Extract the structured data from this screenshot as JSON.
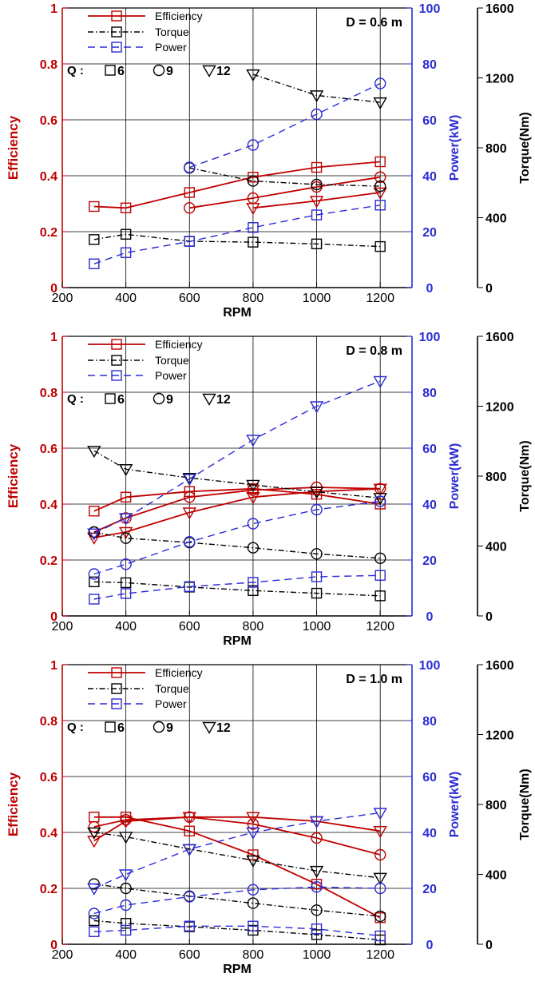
{
  "colors": {
    "efficiency": "#c00000",
    "torque": "#000000",
    "power": "#2b2bd6"
  },
  "legend": {
    "efficiency": "Efficiency",
    "torque": "Torque",
    "power": "Power",
    "q_label": "Q :",
    "q_values": [
      "6",
      "9",
      "12"
    ],
    "q_markers": [
      "square",
      "circle",
      "triangle-down"
    ]
  },
  "chart_data": [
    {
      "type": "line",
      "title": "D = 0.6 m",
      "xlabel": "RPM",
      "ylabel_left": "Efficiency",
      "ylabel_right_inner": "Power(kW)",
      "ylabel_right_outer": "Torque(Nm)",
      "xlim": [
        200,
        1300
      ],
      "ylim_left": [
        0,
        1
      ],
      "ylim_power": [
        0,
        100
      ],
      "ylim_torque": [
        0,
        1600
      ],
      "xticks": [
        "200",
        "400",
        "600",
        "800",
        "1000",
        "1200"
      ],
      "yticks_left": [
        "0",
        "0.2",
        "0.4",
        "0.6",
        "0.8",
        "1"
      ],
      "yticks_power": [
        "0",
        "20",
        "40",
        "60",
        "80",
        "100"
      ],
      "yticks_torque": [
        "0",
        "400",
        "800",
        "1200",
        "1600"
      ],
      "grid": true,
      "series": [
        {
          "quantity": "efficiency",
          "q": "6",
          "marker": "square",
          "x": [
            300,
            400,
            600,
            800,
            1000,
            1200
          ],
          "y": [
            0.29,
            0.285,
            0.34,
            0.395,
            0.43,
            0.45
          ]
        },
        {
          "quantity": "efficiency",
          "q": "9",
          "marker": "circle",
          "x": [
            600,
            800,
            1000,
            1200
          ],
          "y": [
            0.285,
            0.32,
            0.36,
            0.395
          ]
        },
        {
          "quantity": "efficiency",
          "q": "12",
          "marker": "triangle-down",
          "x": [
            800,
            1000,
            1200
          ],
          "y": [
            0.285,
            0.31,
            0.34
          ]
        },
        {
          "quantity": "torque",
          "q": "6",
          "marker": "square",
          "x": [
            300,
            400,
            600,
            800,
            1000,
            1200
          ],
          "y": [
            275,
            305,
            265,
            260,
            250,
            235
          ]
        },
        {
          "quantity": "torque",
          "q": "9",
          "marker": "circle",
          "x": [
            600,
            800,
            1000,
            1200
          ],
          "y": [
            685,
            610,
            590,
            580
          ]
        },
        {
          "quantity": "torque",
          "q": "12",
          "marker": "triangle-down",
          "x": [
            800,
            1000,
            1200
          ],
          "y": [
            1220,
            1100,
            1060
          ]
        },
        {
          "quantity": "power",
          "q": "6",
          "marker": "square",
          "x": [
            300,
            400,
            600,
            800,
            1000,
            1200
          ],
          "y": [
            8.5,
            12.5,
            16.5,
            21.5,
            26,
            29.5
          ]
        },
        {
          "quantity": "power",
          "q": "9",
          "marker": "circle",
          "x": [
            600,
            800,
            1000,
            1200
          ],
          "y": [
            43,
            51,
            62,
            73
          ]
        },
        {
          "quantity": "power",
          "q": "12",
          "marker": "triangle-down",
          "x": [],
          "y": []
        }
      ]
    },
    {
      "type": "line",
      "title": "D = 0.8 m",
      "xlabel": "RPM",
      "ylabel_left": "Efficiency",
      "ylabel_right_inner": "Power(kW)",
      "ylabel_right_outer": "Torque(Nm)",
      "xlim": [
        200,
        1300
      ],
      "ylim_left": [
        0,
        1
      ],
      "ylim_power": [
        0,
        100
      ],
      "ylim_torque": [
        0,
        1600
      ],
      "xticks": [
        "200",
        "400",
        "600",
        "800",
        "1000",
        "1200"
      ],
      "yticks_left": [
        "0",
        "0.2",
        "0.4",
        "0.6",
        "0.8",
        "1"
      ],
      "yticks_power": [
        "0",
        "20",
        "40",
        "60",
        "80",
        "100"
      ],
      "yticks_torque": [
        "0",
        "400",
        "800",
        "1200",
        "1600"
      ],
      "grid": true,
      "series": [
        {
          "quantity": "efficiency",
          "q": "6",
          "marker": "square",
          "x": [
            300,
            400,
            600,
            800,
            1000,
            1200
          ],
          "y": [
            0.375,
            0.425,
            0.445,
            0.455,
            0.435,
            0.4
          ]
        },
        {
          "quantity": "efficiency",
          "q": "9",
          "marker": "circle",
          "x": [
            300,
            400,
            600,
            800,
            1000,
            1200
          ],
          "y": [
            0.3,
            0.35,
            0.425,
            0.45,
            0.46,
            0.455
          ]
        },
        {
          "quantity": "efficiency",
          "q": "12",
          "marker": "triangle-down",
          "x": [
            300,
            400,
            600,
            800,
            1000,
            1200
          ],
          "y": [
            0.28,
            0.3,
            0.37,
            0.425,
            0.445,
            0.455
          ]
        },
        {
          "quantity": "torque",
          "q": "6",
          "marker": "square",
          "x": [
            300,
            400,
            600,
            800,
            1000,
            1200
          ],
          "y": [
            195,
            190,
            165,
            145,
            130,
            115
          ]
        },
        {
          "quantity": "torque",
          "q": "9",
          "marker": "circle",
          "x": [
            300,
            400,
            600,
            800,
            1000,
            1200
          ],
          "y": [
            480,
            445,
            420,
            390,
            355,
            330
          ]
        },
        {
          "quantity": "torque",
          "q": "12",
          "marker": "triangle-down",
          "x": [
            300,
            400,
            600,
            800,
            1000,
            1200
          ],
          "y": [
            945,
            840,
            790,
            750,
            710,
            675
          ]
        },
        {
          "quantity": "power",
          "q": "6",
          "marker": "square",
          "x": [
            300,
            400,
            600,
            800,
            1000,
            1200
          ],
          "y": [
            6,
            8,
            10.5,
            12,
            14,
            14.5
          ]
        },
        {
          "quantity": "power",
          "q": "9",
          "marker": "circle",
          "x": [
            300,
            400,
            600,
            800,
            1000,
            1200
          ],
          "y": [
            15,
            18.5,
            26.5,
            33,
            38,
            41
          ]
        },
        {
          "quantity": "power",
          "q": "12",
          "marker": "triangle-down",
          "x": [
            300,
            400,
            600,
            800,
            1000,
            1200
          ],
          "y": [
            29.5,
            35,
            49,
            63,
            75,
            84
          ]
        }
      ]
    },
    {
      "type": "line",
      "title": "D = 1.0 m",
      "xlabel": "RPM",
      "ylabel_left": "Efficiency",
      "ylabel_right_inner": "Power(kW)",
      "ylabel_right_outer": "Torque(Nm)",
      "xlim": [
        200,
        1300
      ],
      "ylim_left": [
        0,
        1
      ],
      "ylim_power": [
        0,
        100
      ],
      "ylim_torque": [
        0,
        1600
      ],
      "xticks": [
        "200",
        "400",
        "600",
        "800",
        "1000",
        "1200"
      ],
      "yticks_left": [
        "0",
        "0.2",
        "0.4",
        "0.6",
        "0.8",
        "1"
      ],
      "yticks_power": [
        "0",
        "20",
        "40",
        "60",
        "80",
        "100"
      ],
      "yticks_torque": [
        "0",
        "400",
        "800",
        "1200",
        "1600"
      ],
      "grid": true,
      "series": [
        {
          "quantity": "efficiency",
          "q": "6",
          "marker": "square",
          "x": [
            300,
            400,
            600,
            800,
            1000,
            1200
          ],
          "y": [
            0.455,
            0.455,
            0.405,
            0.32,
            0.215,
            0.095
          ]
        },
        {
          "quantity": "efficiency",
          "q": "9",
          "marker": "circle",
          "x": [
            300,
            400,
            600,
            800,
            1000,
            1200
          ],
          "y": [
            0.42,
            0.445,
            0.455,
            0.43,
            0.38,
            0.32
          ]
        },
        {
          "quantity": "efficiency",
          "q": "12",
          "marker": "triangle-down",
          "x": [
            300,
            400,
            600,
            800,
            1000,
            1200
          ],
          "y": [
            0.37,
            0.44,
            0.455,
            0.455,
            0.44,
            0.405
          ]
        },
        {
          "quantity": "torque",
          "q": "6",
          "marker": "square",
          "x": [
            300,
            400,
            600,
            800,
            1000,
            1200
          ],
          "y": [
            135,
            120,
            100,
            80,
            55,
            25
          ]
        },
        {
          "quantity": "torque",
          "q": "9",
          "marker": "circle",
          "x": [
            300,
            400,
            600,
            800,
            1000,
            1200
          ],
          "y": [
            345,
            320,
            275,
            235,
            195,
            160
          ]
        },
        {
          "quantity": "torque",
          "q": "12",
          "marker": "triangle-down",
          "x": [
            300,
            400,
            600,
            800,
            1000,
            1200
          ],
          "y": [
            640,
            615,
            545,
            480,
            420,
            380
          ]
        },
        {
          "quantity": "power",
          "q": "6",
          "marker": "square",
          "x": [
            300,
            400,
            600,
            800,
            1000,
            1200
          ],
          "y": [
            4.5,
            5,
            6.5,
            6.5,
            5.5,
            3
          ]
        },
        {
          "quantity": "power",
          "q": "9",
          "marker": "circle",
          "x": [
            300,
            400,
            600,
            800,
            1000,
            1200
          ],
          "y": [
            11,
            14,
            17,
            19.5,
            20.5,
            20
          ]
        },
        {
          "quantity": "power",
          "q": "12",
          "marker": "triangle-down",
          "x": [
            300,
            400,
            600,
            800,
            1000,
            1200
          ],
          "y": [
            20,
            25,
            34,
            40,
            44,
            47
          ]
        }
      ]
    }
  ]
}
